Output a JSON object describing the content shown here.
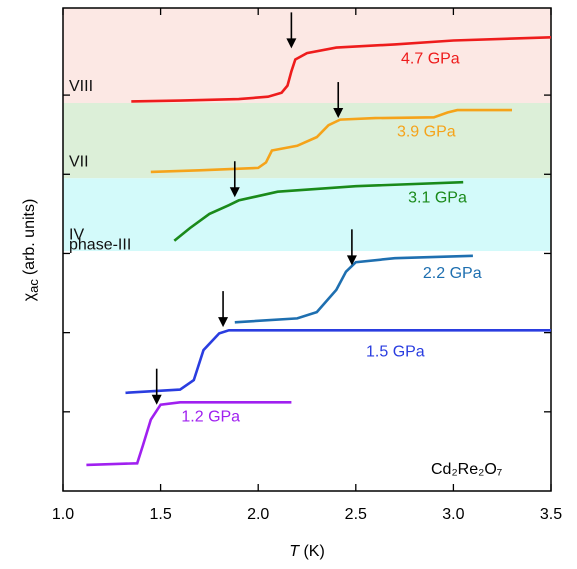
{
  "chart_data": {
    "type": "line",
    "x_label": {
      "symbol": "T",
      "rest": "(K)"
    },
    "y_label": {
      "symbol": "χ",
      "subscript": "ac",
      "rest": "(arb. units)"
    },
    "annotation": "Cd₂Re₂O₇",
    "xlim": [
      1.0,
      3.5
    ],
    "xticks": [
      {
        "value": 1.0,
        "label": "1.0"
      },
      {
        "value": 1.5,
        "label": "1.5"
      },
      {
        "value": 2.0,
        "label": "2.0"
      },
      {
        "value": 2.5,
        "label": "2.5"
      },
      {
        "value": 3.0,
        "label": "3.0"
      },
      {
        "value": 3.5,
        "label": "3.5"
      }
    ],
    "ylim": [
      0,
      6.1
    ],
    "yticks": [
      1,
      2,
      3,
      4,
      5
    ],
    "regions": [
      {
        "label": "VIII",
        "ymin": 4.9,
        "ymax": 6.1,
        "color": "#fce8e4"
      },
      {
        "label": "VII",
        "ymin": 3.95,
        "ymax": 4.9,
        "color": "#dcefd8"
      },
      {
        "label": "IV",
        "ymin": 3.03,
        "ymax": 3.95,
        "color": "#d3fafa"
      },
      {
        "label": "phase-III",
        "ymin": 2.9,
        "ymax": 3.03,
        "color": "#ffffff"
      }
    ],
    "series": [
      {
        "name": "4.7 GPa",
        "color": "#ee1c1c",
        "x": [
          1.35,
          1.6,
          1.9,
          2.05,
          2.12,
          2.15,
          2.17,
          2.19,
          2.25,
          2.4,
          2.7,
          3.0,
          3.5
        ],
        "values": [
          4.92,
          4.93,
          4.95,
          4.98,
          5.03,
          5.12,
          5.3,
          5.45,
          5.53,
          5.6,
          5.64,
          5.69,
          5.73
        ],
        "arrow": {
          "x": 2.17,
          "y": 5.59
        }
      },
      {
        "name": "3.9 GPa",
        "color": "#f5a31a",
        "x": [
          1.45,
          1.7,
          2.0,
          2.04,
          2.07,
          2.2,
          2.3,
          2.36,
          2.42,
          2.6,
          2.9,
          2.97,
          3.02,
          3.3
        ],
        "values": [
          4.03,
          4.05,
          4.08,
          4.15,
          4.3,
          4.36,
          4.47,
          4.62,
          4.69,
          4.71,
          4.72,
          4.78,
          4.81,
          4.81
        ],
        "arrow": {
          "x": 2.41,
          "y": 4.71
        }
      },
      {
        "name": "3.1 GPa",
        "color": "#1a8a1a",
        "x": [
          1.57,
          1.65,
          1.75,
          1.85,
          1.9,
          2.1,
          2.5,
          3.05
        ],
        "values": [
          3.16,
          3.32,
          3.5,
          3.61,
          3.67,
          3.78,
          3.85,
          3.9
        ],
        "arrow": {
          "x": 1.88,
          "y": 3.71
        }
      },
      {
        "name": "2.2 GPa",
        "color": "#1e6fb0",
        "x": [
          1.88,
          2.2,
          2.3,
          2.4,
          2.45,
          2.5,
          2.7,
          3.1
        ],
        "values": [
          2.13,
          2.18,
          2.26,
          2.54,
          2.77,
          2.89,
          2.94,
          2.97
        ],
        "arrow": {
          "x": 2.48,
          "y": 2.85
        }
      },
      {
        "name": "1.5 GPa",
        "color": "#2a3de0",
        "x": [
          1.32,
          1.6,
          1.67,
          1.72,
          1.8,
          1.85,
          3.5
        ],
        "values": [
          1.24,
          1.28,
          1.4,
          1.78,
          1.99,
          2.03,
          2.03
        ],
        "arrow": {
          "x": 1.82,
          "y": 2.07
        }
      },
      {
        "name": "1.2 GPa",
        "color": "#a020f0",
        "x": [
          1.12,
          1.38,
          1.41,
          1.45,
          1.5,
          1.6,
          2.17
        ],
        "values": [
          0.33,
          0.35,
          0.58,
          0.9,
          1.09,
          1.12,
          1.12
        ],
        "arrow": {
          "x": 1.48,
          "y": 1.09
        }
      }
    ]
  }
}
